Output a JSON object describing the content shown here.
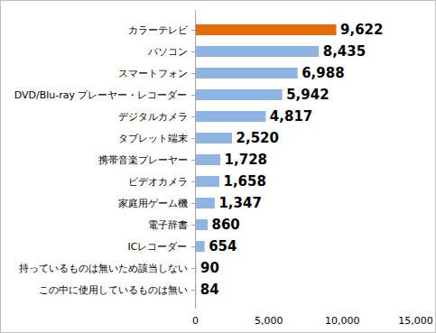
{
  "chart_data": {
    "type": "bar",
    "orientation": "horizontal",
    "categories": [
      "カラーテレビ",
      "パソコン",
      "スマートフォン",
      "DVD/Blu-ray プレーヤー・レコーダー",
      "デジタルカメラ",
      "タブレット端末",
      "携帯音楽プレーヤー",
      "ビデオカメラ",
      "家庭用ゲーム機",
      "電子辞書",
      "ICレコーダー",
      "持っているものは無いため該当しない",
      "この中に使用しているものは無い"
    ],
    "values": [
      9622,
      8435,
      6988,
      5942,
      4817,
      2520,
      1728,
      1658,
      1347,
      860,
      654,
      90,
      84
    ],
    "value_labels": [
      "9,622",
      "8,435",
      "6,988",
      "5,942",
      "4,817",
      "2,520",
      "1,728",
      "1,658",
      "1,347",
      "860",
      "654",
      "90",
      "84"
    ],
    "colors": [
      "#e46c0a",
      "#8db4e2",
      "#8db4e2",
      "#8db4e2",
      "#8db4e2",
      "#8db4e2",
      "#8db4e2",
      "#8db4e2",
      "#8db4e2",
      "#8db4e2",
      "#8db4e2",
      "#8db4e2",
      "#8db4e2"
    ],
    "xlim": [
      0,
      15000
    ],
    "xticks": [
      0,
      {
        "value": 5000,
        "label": "5,000"
      },
      {
        "value": 10000,
        "label": "10,000"
      },
      {
        "value": 15000,
        "label": "15,000"
      }
    ],
    "data_labels": true,
    "grid": false
  }
}
